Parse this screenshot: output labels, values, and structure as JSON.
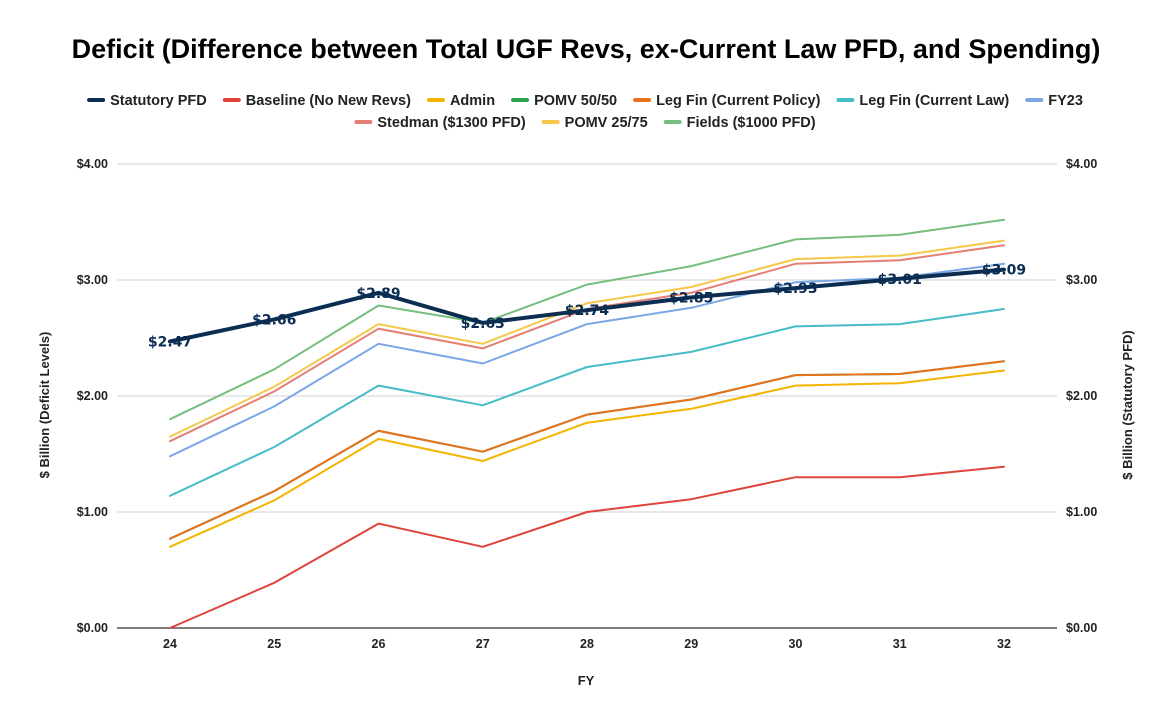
{
  "chart_data": {
    "type": "line",
    "title": "Deficit (Difference between Total UGF Revs, ex-Current Law PFD, and Spending)",
    "xlabel": "FY",
    "ylabel": "$ Billion (Deficit Levels)",
    "ylabel_right": "$ Billion (Statutory PFD)",
    "categories": [
      "24",
      "25",
      "26",
      "27",
      "28",
      "29",
      "30",
      "31",
      "32"
    ],
    "ylim": [
      0,
      4
    ],
    "y_ticks": [
      "$0.00",
      "$1.00",
      "$2.00",
      "$3.00",
      "$4.00"
    ],
    "y_tick_values": [
      0,
      1,
      2,
      3,
      4
    ],
    "grid": true,
    "legend_position": "top",
    "series": [
      {
        "name": "Statutory PFD",
        "color": "#0b2d52",
        "axis": "right",
        "emphasis": true,
        "values": [
          2.47,
          2.66,
          2.89,
          2.63,
          2.74,
          2.85,
          2.93,
          3.01,
          3.09
        ],
        "labels": [
          "$2.47",
          "$2.66",
          "$2.89",
          "$2.63",
          "$2.74",
          "$2.85",
          "$2.93",
          "$3.01",
          "$3.09"
        ]
      },
      {
        "name": "Baseline (No New Revs)",
        "color": "#e0433a",
        "values": [
          0.0,
          0.39,
          0.9,
          0.7,
          1.0,
          1.11,
          1.3,
          1.3,
          1.39
        ]
      },
      {
        "name": "Admin",
        "color": "#f4b400",
        "values": [
          0.7,
          1.1,
          1.63,
          1.44,
          1.77,
          1.89,
          2.09,
          2.11,
          2.22
        ]
      },
      {
        "name": "POMV 50/50",
        "color": "#2da34f",
        "values": [
          0.77,
          1.18,
          1.7,
          1.52,
          1.84,
          1.97,
          2.18,
          2.19,
          2.3
        ]
      },
      {
        "name": "Leg Fin (Current Policy)",
        "color": "#e8711c",
        "values": [
          0.77,
          1.18,
          1.7,
          1.52,
          1.84,
          1.97,
          2.18,
          2.19,
          2.3
        ]
      },
      {
        "name": "Leg Fin (Current Law)",
        "color": "#46bdc6",
        "values": [
          1.14,
          1.56,
          2.09,
          1.92,
          2.25,
          2.38,
          2.6,
          2.62,
          2.75
        ]
      },
      {
        "name": "FY23",
        "color": "#7ba7e6",
        "values": [
          1.48,
          1.91,
          2.45,
          2.28,
          2.62,
          2.76,
          2.98,
          3.02,
          3.14
        ]
      },
      {
        "name": "Stedman ($1300 PFD)",
        "color": "#e57f74",
        "values": [
          1.61,
          2.04,
          2.58,
          2.41,
          2.75,
          2.89,
          3.14,
          3.17,
          3.3
        ]
      },
      {
        "name": "POMV 25/75",
        "color": "#f5c84a",
        "values": [
          1.65,
          2.08,
          2.62,
          2.45,
          2.8,
          2.94,
          3.18,
          3.21,
          3.34
        ]
      },
      {
        "name": "Fields ($1000 PFD)",
        "color": "#74bf7d",
        "values": [
          1.8,
          2.23,
          2.78,
          2.63,
          2.96,
          3.12,
          3.35,
          3.39,
          3.52
        ]
      }
    ]
  }
}
